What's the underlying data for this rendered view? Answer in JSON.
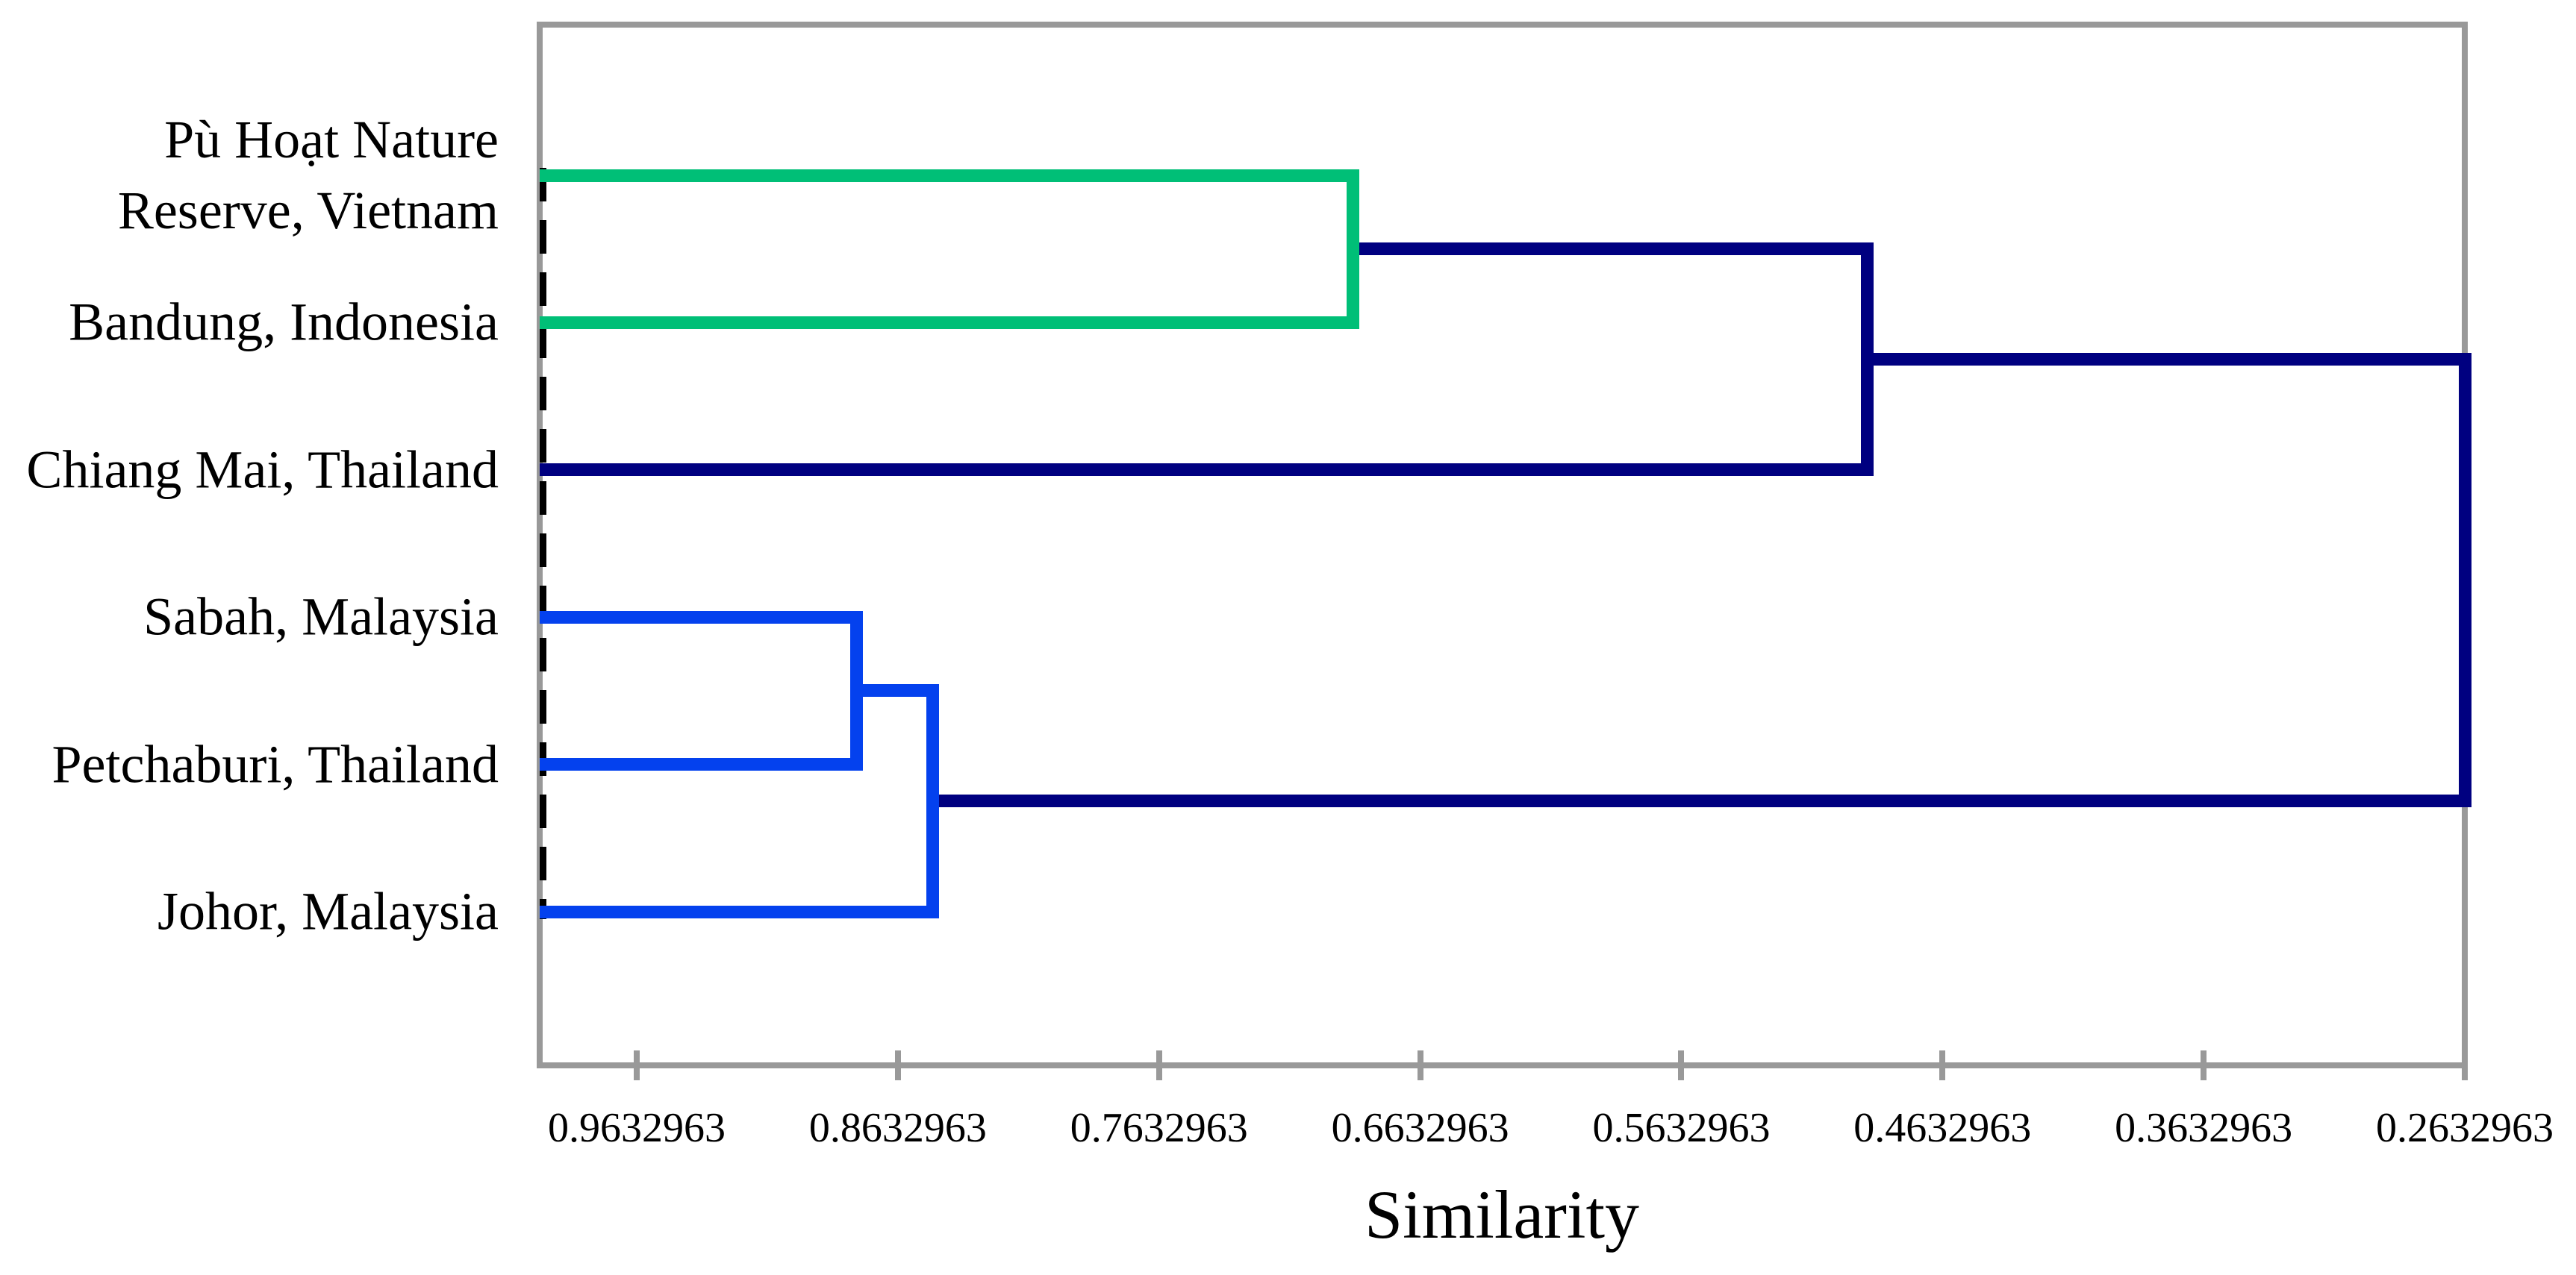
{
  "page": {
    "background": "#ffffff"
  },
  "chart_data": {
    "type": "dendrogram",
    "orientation": "horizontal_right",
    "xlabel": "Similarity",
    "x_axis": {
      "left_value": 1.0,
      "right_value": 0.2632963,
      "tick_values": [
        0.9632963,
        0.8632963,
        0.7632963,
        0.6632963,
        0.5632963,
        0.4632963,
        0.3632963,
        0.2632963
      ],
      "tick_labels": [
        "0.9632963",
        "0.8632963",
        "0.7632963",
        "0.6632963",
        "0.5632963",
        "0.4632963",
        "0.3632963",
        "0.2632963"
      ],
      "grid": false
    },
    "leaves": [
      {
        "id": "L0",
        "label": "Pù Hoạt Nature Reserve, Vietnam",
        "label_lines": [
          "Pù Hoạt Nature",
          "Reserve, Vietnam"
        ]
      },
      {
        "id": "L1",
        "label": "Bandung, Indonesia",
        "label_lines": [
          "Bandung, Indonesia"
        ]
      },
      {
        "id": "L2",
        "label": "Chiang Mai, Thailand",
        "label_lines": [
          "Chiang Mai, Thailand"
        ]
      },
      {
        "id": "L3",
        "label": "Sabah, Malaysia",
        "label_lines": [
          "Sabah, Malaysia"
        ]
      },
      {
        "id": "L4",
        "label": "Petchaburi, Thailand",
        "label_lines": [
          "Petchaburi, Thailand"
        ]
      },
      {
        "id": "L5",
        "label": "Johor, Malaysia",
        "label_lines": [
          "Johor, Malaysia"
        ]
      }
    ],
    "merges": [
      {
        "id": "M0",
        "children": [
          "L0",
          "L1"
        ],
        "similarity": 0.689,
        "color_key": "cluster_green"
      },
      {
        "id": "M1",
        "children": [
          "M0",
          "L2"
        ],
        "similarity": 0.492,
        "color_key": "link_navy"
      },
      {
        "id": "M2",
        "children": [
          "L3",
          "L4"
        ],
        "similarity": 0.879,
        "color_key": "cluster_blue"
      },
      {
        "id": "M3",
        "children": [
          "M2",
          "L5"
        ],
        "similarity": 0.85,
        "color_key": "cluster_blue"
      },
      {
        "id": "M4",
        "children": [
          "M1",
          "M3"
        ],
        "similarity": 0.2632963,
        "color_key": "link_navy"
      }
    ],
    "colors": {
      "cluster_green": "#00bf77",
      "cluster_blue": "#0441ee",
      "link_navy": "#000080",
      "frame_gray": "#999999",
      "baseline_dash": "#000000",
      "text": "#000000"
    },
    "baseline": {
      "style": "dashed",
      "at_value": 1.0
    }
  }
}
